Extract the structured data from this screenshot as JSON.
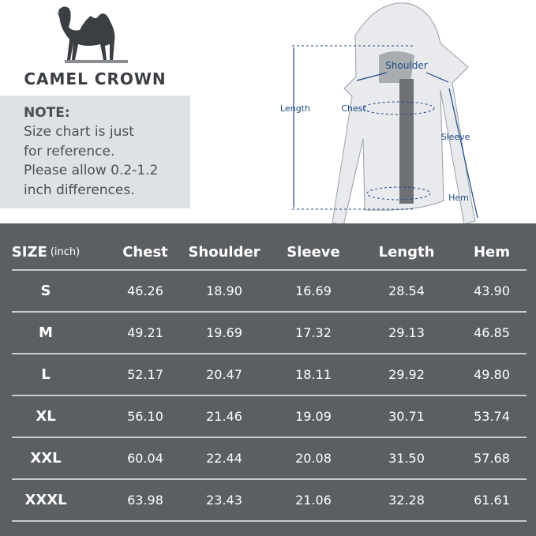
{
  "brand": {
    "name": "CAMEL CROWN"
  },
  "note": {
    "title": "NOTE:",
    "lines": [
      "Size chart is just",
      "for reference.",
      "Please allow 0.2-1.2",
      "inch differences."
    ]
  },
  "diagram": {
    "labels": {
      "shoulder": "Shoulder",
      "length": "Length",
      "chest": "Chest",
      "sleeve": "Sleeve",
      "hem": "Hem"
    },
    "accent": "#1f4a87"
  },
  "table": {
    "header": {
      "size": "SIZE",
      "unit": "(inch)",
      "columns": [
        "Chest",
        "Shoulder",
        "Sleeve",
        "Length",
        "Hem"
      ]
    },
    "rows": [
      {
        "size": "S",
        "values": [
          "46.26",
          "18.90",
          "16.69",
          "28.54",
          "43.90"
        ]
      },
      {
        "size": "M",
        "values": [
          "49.21",
          "19.69",
          "17.32",
          "29.13",
          "46.85"
        ]
      },
      {
        "size": "L",
        "values": [
          "52.17",
          "20.47",
          "18.11",
          "29.92",
          "49.80"
        ]
      },
      {
        "size": "XL",
        "values": [
          "56.10",
          "21.46",
          "19.09",
          "30.71",
          "53.74"
        ]
      },
      {
        "size": "XXL",
        "values": [
          "60.04",
          "22.44",
          "20.08",
          "31.50",
          "57.68"
        ]
      },
      {
        "size": "XXXL",
        "values": [
          "63.98",
          "23.43",
          "21.06",
          "32.28",
          "61.61"
        ]
      }
    ]
  }
}
